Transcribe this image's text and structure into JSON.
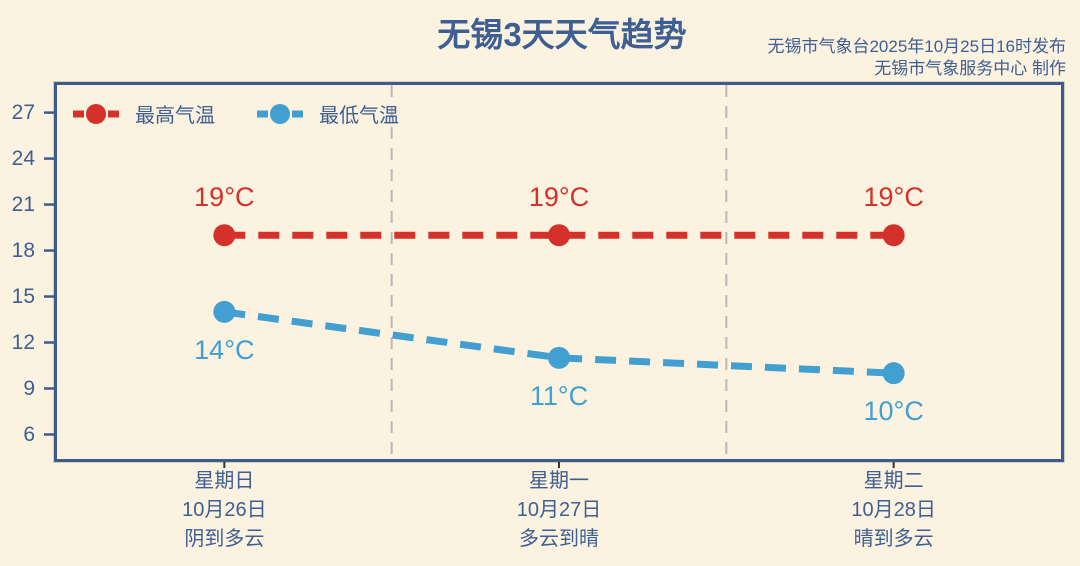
{
  "header": {
    "title": "无锡3天天气趋势",
    "publisher_line1": "无锡市气象台2025年10月25日16时发布",
    "publisher_line2": "无锡市气象服务中心 制作"
  },
  "legend": [
    {
      "label": "最高气温",
      "color": "#d5312b"
    },
    {
      "label": "最低气温",
      "color": "#419fd1"
    }
  ],
  "chart_data": {
    "type": "line",
    "title": "无锡3天天气趋势",
    "categories": [
      {
        "weekday": "星期日",
        "date": "10月26日",
        "weather": "阴到多云"
      },
      {
        "weekday": "星期一",
        "date": "10月27日",
        "weather": "多云到晴"
      },
      {
        "weekday": "星期二",
        "date": "10月28日",
        "weather": "晴到多云"
      }
    ],
    "series": [
      {
        "key": "max",
        "name": "最高气温",
        "values": [
          19,
          19,
          19
        ],
        "color": "#d5312b",
        "label_position": "above"
      },
      {
        "key": "min",
        "name": "最低气温",
        "values": [
          14,
          11,
          10
        ],
        "color": "#419fd1",
        "label_position": "below"
      }
    ],
    "unit": "°C",
    "yticks": [
      6,
      9,
      12,
      15,
      18,
      21,
      24,
      27
    ],
    "ylim": [
      4.4,
      28.8
    ],
    "line_style": "dashed",
    "grid": "vertical-dashed-day-separators",
    "legend_position": "top-left"
  },
  "colors": {
    "background": "#fbf2e0",
    "axis_text": "#3e5f93",
    "plot_border": "#3d5c8c",
    "gridline": "#b9b9b9",
    "x_tick": "#333333",
    "max_temp": "#d5312b",
    "min_temp": "#419fd1"
  }
}
